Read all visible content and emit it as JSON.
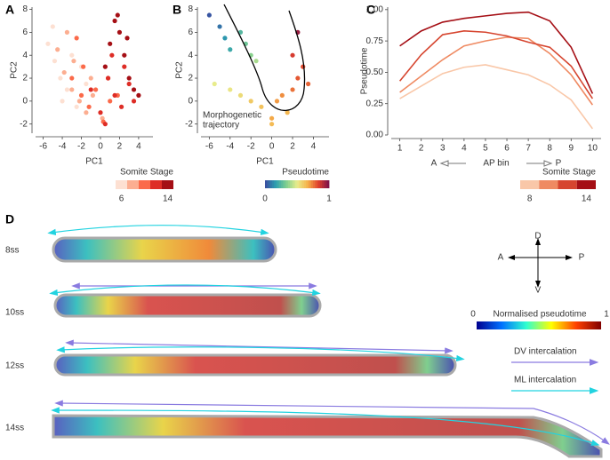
{
  "chart_data": [
    {
      "type": "scatter",
      "label": "A",
      "x_label": "PC1",
      "y_label": "PC2",
      "xlim": [
        -6.8,
        5.5
      ],
      "xticks": [
        -6,
        -4,
        -2,
        0,
        2,
        4
      ],
      "ylim": [
        -2.8,
        8.2
      ],
      "yticks": [
        -2,
        0,
        2,
        4,
        6,
        8
      ],
      "legend_title": "Somite Stage",
      "series": [
        {
          "name": "6",
          "color": "#fde0d2",
          "x": [
            -5.5,
            -4.8,
            -4.2,
            -3.5,
            -5.0,
            -3.0,
            -2.5,
            -4.0,
            -1.5,
            -2.0
          ],
          "values": [
            5,
            3.5,
            2,
            1,
            6.5,
            4,
            -0.5,
            0,
            1.5,
            3
          ]
        },
        {
          "name": null,
          "color": "#fcae91",
          "x": [
            -4.5,
            -3.8,
            -3.0,
            -2.2,
            -1.5,
            -0.8,
            -2.8,
            -1.0,
            0.2,
            -3.5
          ],
          "values": [
            4.5,
            2.5,
            1,
            0,
            -1,
            0.5,
            3.5,
            2,
            -1.5,
            6
          ]
        },
        {
          "name": null,
          "color": "#fb6a4a",
          "x": [
            -3,
            -2,
            -1.2,
            -0.5,
            0.3,
            1,
            -1.8,
            0.8,
            1.8,
            -2.5
          ],
          "values": [
            2,
            0.5,
            -0.5,
            1,
            -1.8,
            0,
            3,
            2,
            0.5,
            5.5
          ]
        },
        {
          "name": null,
          "color": "#de2d26",
          "x": [
            -1,
            0,
            0.8,
            1.5,
            2.2,
            3,
            2.5,
            1.2,
            3.5,
            0.5
          ],
          "values": [
            1,
            -1,
            2,
            0.5,
            -0.5,
            1.5,
            3,
            4,
            0,
            -2
          ]
        },
        {
          "name": "14",
          "color": "#a50f15",
          "x": [
            0.5,
            1,
            1.5,
            2,
            2.5,
            3,
            3.5,
            4,
            1.8,
            2.8
          ],
          "values": [
            3,
            5,
            7,
            6,
            4,
            2,
            1,
            0.5,
            7.5,
            5.5
          ]
        }
      ]
    },
    {
      "type": "scatter",
      "label": "B",
      "x_label": "PC1",
      "y_label": "PC2",
      "xlim": [
        -6.8,
        5.5
      ],
      "xticks": [
        -6,
        -4,
        -2,
        0,
        2,
        4
      ],
      "ylim": [
        -2.8,
        8.2
      ],
      "yticks": [
        -2,
        0,
        2,
        4,
        6,
        8
      ],
      "annotation": [
        "Morphogenetic",
        "trajectory"
      ],
      "colorbar_title": "Pseudotime",
      "cticks": [
        0,
        1
      ],
      "colorscale": [
        "#3a4ba0",
        "#2c9fb0",
        "#7fcf8f",
        "#e8ec8c",
        "#f6b24a",
        "#e0402c",
        "#7a0f4a"
      ],
      "series": [
        {
          "x": [
            -6,
            -5,
            -4.5,
            -4,
            -3,
            -2.5,
            -2,
            -1.5,
            -5.5,
            -4,
            -3,
            -2,
            -1,
            0,
            0.5,
            1,
            2,
            2.5,
            2,
            3,
            2.5,
            3.5,
            1.5,
            0
          ],
          "values": [
            7.5,
            6.5,
            5.5,
            4.5,
            6,
            5,
            4,
            3.5,
            1.5,
            1,
            0.5,
            0,
            -0.5,
            -1.5,
            0,
            0.5,
            1,
            2,
            4,
            3,
            6,
            1.5,
            -1,
            -2
          ],
          "pseudotime": [
            0.02,
            0.08,
            0.15,
            0.2,
            0.25,
            0.3,
            0.35,
            0.4,
            0.5,
            0.52,
            0.55,
            0.6,
            0.62,
            0.68,
            0.7,
            0.72,
            0.76,
            0.8,
            0.85,
            0.82,
            0.95,
            0.78,
            0.65,
            0.64
          ]
        }
      ]
    },
    {
      "type": "line",
      "label": "C",
      "x_label": "AP bin",
      "x_label_ends": [
        "A",
        "P"
      ],
      "y_label": "Pseudotime",
      "x": [
        1,
        2,
        3,
        4,
        5,
        6,
        7,
        8,
        9,
        10
      ],
      "xlim": [
        0.6,
        10.4
      ],
      "xticks": [
        1,
        2,
        3,
        4,
        5,
        6,
        7,
        8,
        9,
        10
      ],
      "ylim": [
        0,
        1.02
      ],
      "yticks": [
        {
          "value": 0,
          "label": "0.00"
        },
        {
          "value": 0.25,
          "label": "0.25"
        },
        {
          "value": 0.5,
          "label": "0.50"
        },
        {
          "value": 0.75,
          "label": "0.75"
        },
        {
          "value": 1,
          "label": "1.00"
        }
      ],
      "legend_title": "Somite Stage",
      "series": [
        {
          "name": "8",
          "color": "#f9c7a8",
          "values": [
            0.29,
            0.39,
            0.49,
            0.54,
            0.56,
            0.52,
            0.48,
            0.4,
            0.28,
            0.05
          ]
        },
        {
          "name": null,
          "color": "#ef8a62",
          "values": [
            0.34,
            0.47,
            0.6,
            0.71,
            0.75,
            0.78,
            0.77,
            0.65,
            0.48,
            0.24
          ]
        },
        {
          "name": null,
          "color": "#d6452f",
          "values": [
            0.43,
            0.64,
            0.8,
            0.83,
            0.82,
            0.79,
            0.74,
            0.7,
            0.55,
            0.29
          ]
        },
        {
          "name": "14",
          "color": "#a50f15",
          "values": [
            0.71,
            0.83,
            0.9,
            0.93,
            0.95,
            0.97,
            0.98,
            0.91,
            0.7,
            0.33
          ]
        }
      ]
    }
  ],
  "panel_d": {
    "label": "D",
    "stages": [
      "8ss",
      "10ss",
      "12ss",
      "14ss"
    ],
    "compass": {
      "up": "D",
      "down": "V",
      "left": "A",
      "right": "P"
    },
    "colorbar": {
      "min": "0",
      "title": "Normalised pseudotime",
      "max": "1"
    },
    "legend": [
      "DV intercalation",
      "ML intercalation"
    ]
  }
}
